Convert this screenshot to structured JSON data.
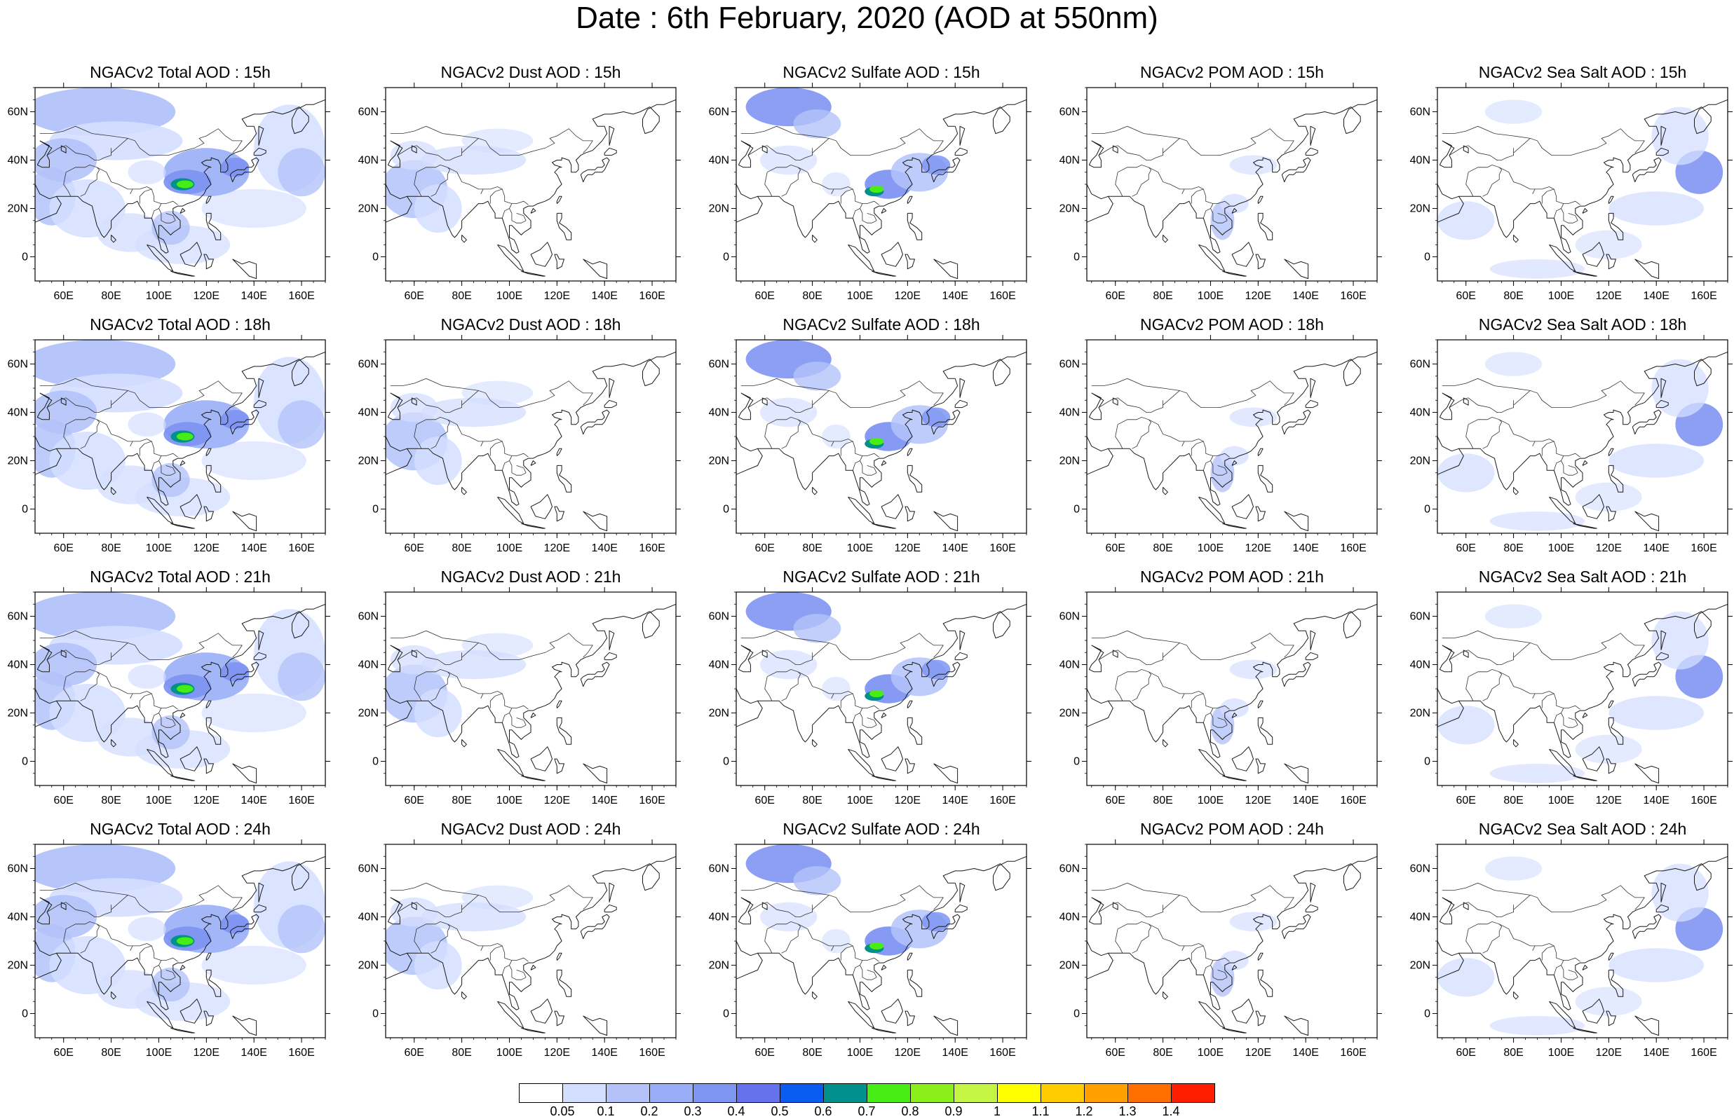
{
  "title": "Date : 6th February, 2020 (AOD at 550nm)",
  "map_axes": {
    "x_ticks": [
      "60E",
      "80E",
      "100E",
      "120E",
      "140E",
      "160E"
    ],
    "y_ticks": [
      "60N",
      "40N",
      "20N",
      "0"
    ],
    "lon_range": [
      48,
      170
    ],
    "lat_range": [
      -10,
      70
    ]
  },
  "panels": [
    [
      {
        "title": "NGACv2 Total AOD : 15h",
        "species": "total"
      },
      {
        "title": "NGACv2 Dust AOD : 15h",
        "species": "dust"
      },
      {
        "title": "NGACv2 Sulfate AOD : 15h",
        "species": "sulfate"
      },
      {
        "title": "NGACv2 POM AOD : 15h",
        "species": "pom"
      },
      {
        "title": "NGACv2 Sea Salt AOD : 15h",
        "species": "seasalt"
      }
    ],
    [
      {
        "title": "NGACv2 Total AOD : 18h",
        "species": "total"
      },
      {
        "title": "NGACv2 Dust AOD : 18h",
        "species": "dust"
      },
      {
        "title": "NGACv2 Sulfate AOD : 18h",
        "species": "sulfate"
      },
      {
        "title": "NGACv2 POM AOD : 18h",
        "species": "pom"
      },
      {
        "title": "NGACv2 Sea Salt AOD : 18h",
        "species": "seasalt"
      }
    ],
    [
      {
        "title": "NGACv2 Total AOD : 21h",
        "species": "total"
      },
      {
        "title": "NGACv2 Dust AOD : 21h",
        "species": "dust"
      },
      {
        "title": "NGACv2 Sulfate AOD : 21h",
        "species": "sulfate"
      },
      {
        "title": "NGACv2 POM AOD : 21h",
        "species": "pom"
      },
      {
        "title": "NGACv2 Sea Salt AOD : 21h",
        "species": "seasalt"
      }
    ],
    [
      {
        "title": "NGACv2 Total AOD : 24h",
        "species": "total"
      },
      {
        "title": "NGACv2 Dust AOD : 24h",
        "species": "dust"
      },
      {
        "title": "NGACv2 Sulfate AOD : 24h",
        "species": "sulfate"
      },
      {
        "title": "NGACv2 POM AOD : 24h",
        "species": "pom"
      },
      {
        "title": "NGACv2 Sea Salt  AOD : 24h",
        "species": "seasalt"
      }
    ]
  ],
  "colorbar": {
    "labels": [
      "0.05",
      "0.1",
      "0.2",
      "0.3",
      "0.4",
      "0.5",
      "0.6",
      "0.7",
      "0.8",
      "0.9",
      "1",
      "1.1",
      "1.2",
      "1.3",
      "1.4"
    ],
    "colors": [
      "#ffffff",
      "#d4deff",
      "#b3c3fa",
      "#98aef7",
      "#7f95f2",
      "#6671ee",
      "#0a5cf0",
      "#00918c",
      "#47ed14",
      "#8bf019",
      "#c4f545",
      "#ffff00",
      "#ffcc00",
      "#ffa000",
      "#ff6e00",
      "#ff1e00"
    ]
  },
  "field_colors": {
    "light": "#d4deff",
    "mid": "#b3c3fa",
    "dark": "#98aef7",
    "deep": "#7f95f2",
    "teal": "#00918c",
    "green": "#47ed14",
    "yellowgreen": "#c4f545"
  }
}
